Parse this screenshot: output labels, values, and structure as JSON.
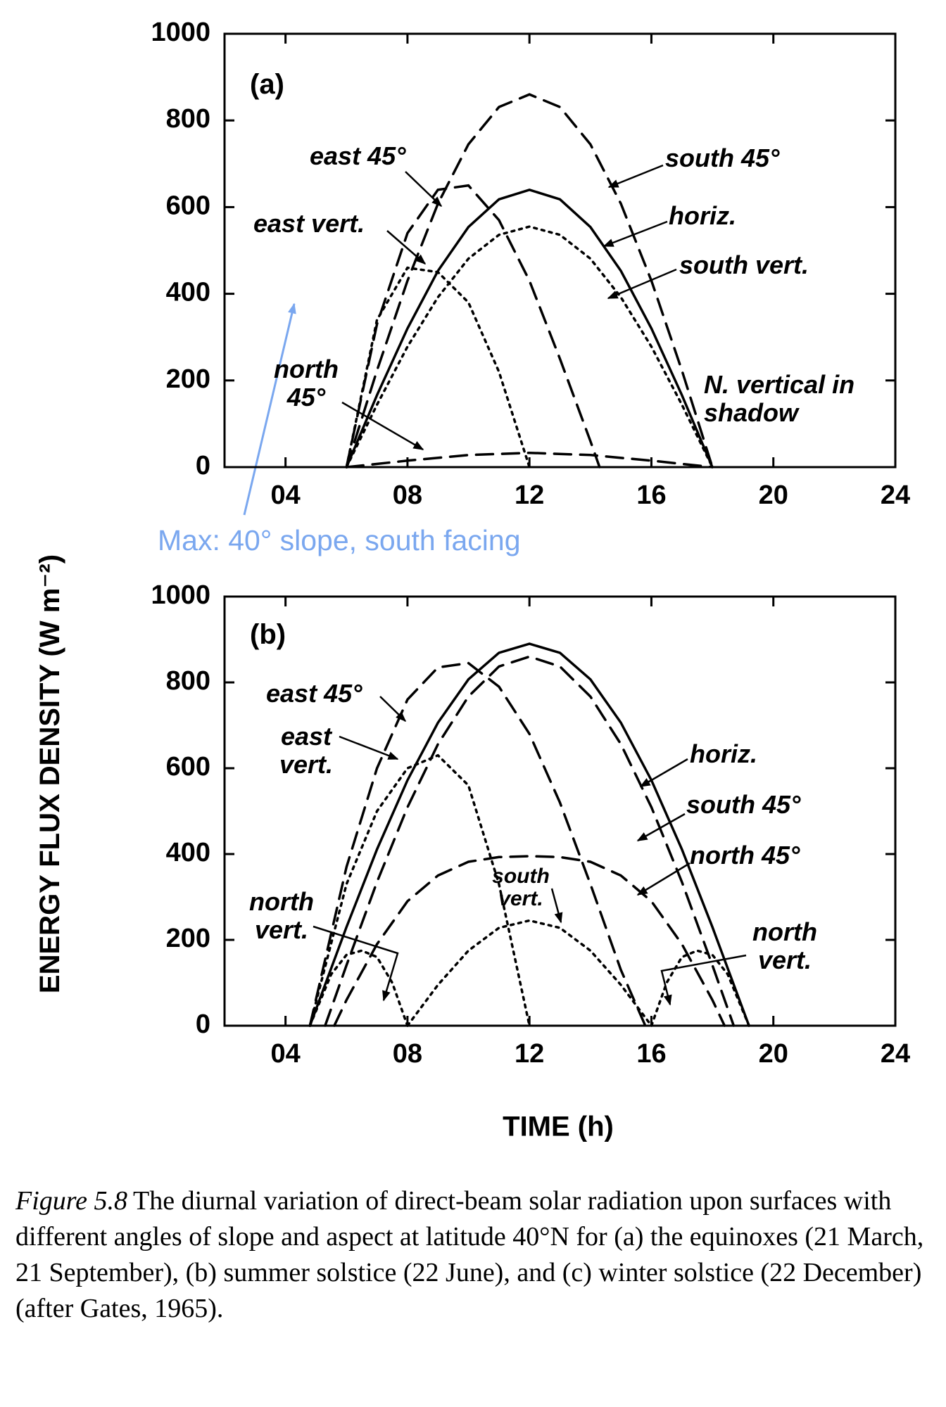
{
  "figure": {
    "y_axis_label": "ENERGY FLUX DENSITY (W m⁻²)",
    "x_axis_label": "TIME (h)",
    "annotation": "Max: 40° slope, south facing",
    "caption_label": "Figure 5.8",
    "caption": "The diurnal variation of direct-beam solar radiation upon surfaces with different angles of slope and aspect at latitude 40°N for (a) the equinoxes (21 March, 21 September), (b) summer solstice (22 June), and (c) winter solstice (22 December) (after Gates, 1965)."
  },
  "chart_data": [
    {
      "type": "line",
      "panel_label": "(a)",
      "note": "N. vertical in shadow",
      "xlim": [
        2,
        24
      ],
      "xticks": [
        {
          "value": 4,
          "label": "04"
        },
        {
          "value": 8,
          "label": "08"
        },
        12,
        16,
        20,
        24
      ],
      "ylim": [
        0,
        1000
      ],
      "yticks": [
        0,
        200,
        400,
        600,
        800,
        1000
      ],
      "series": [
        {
          "name": "south 45°",
          "color": "#000000",
          "dash": "long",
          "x": [
            6,
            7,
            8,
            9,
            10,
            11,
            12,
            13,
            14,
            15,
            16,
            17,
            18
          ],
          "values": [
            0,
            223,
            430,
            608,
            745,
            831,
            860,
            831,
            745,
            608,
            430,
            223,
            0
          ]
        },
        {
          "name": "horiz.",
          "color": "#000000",
          "dash": "solid",
          "x": [
            6,
            7,
            8,
            9,
            10,
            11,
            12,
            13,
            14,
            15,
            16,
            17,
            18
          ],
          "values": [
            0,
            166,
            320,
            453,
            554,
            618,
            640,
            618,
            554,
            453,
            320,
            166,
            0
          ]
        },
        {
          "name": "south vert.",
          "color": "#000000",
          "dash": "dot",
          "x": [
            6,
            7,
            8,
            9,
            10,
            11,
            12,
            13,
            14,
            15,
            16,
            17,
            18
          ],
          "values": [
            0,
            144,
            278,
            392,
            481,
            536,
            555,
            536,
            481,
            392,
            278,
            144,
            0
          ]
        },
        {
          "name": "east 45°",
          "color": "#000000",
          "dash": "long",
          "x": [
            6,
            7,
            8,
            9,
            10,
            11,
            12,
            13,
            14,
            14.3
          ],
          "values": [
            0,
            330,
            540,
            640,
            650,
            570,
            430,
            250,
            60,
            0
          ]
        },
        {
          "name": "east vert.",
          "color": "#000000",
          "dash": "dot",
          "x": [
            6,
            7,
            8,
            9,
            10,
            11,
            12
          ],
          "values": [
            0,
            340,
            460,
            450,
            380,
            220,
            0
          ]
        },
        {
          "name": "north 45°",
          "color": "#000000",
          "dash": "long",
          "x": [
            6,
            8,
            10,
            12,
            14,
            16,
            18
          ],
          "values": [
            0,
            15,
            28,
            33,
            28,
            15,
            0
          ]
        }
      ]
    },
    {
      "type": "line",
      "panel_label": "(b)",
      "xlim": [
        2,
        24
      ],
      "xticks": [
        {
          "value": 4,
          "label": "04"
        },
        {
          "value": 8,
          "label": "08"
        },
        12,
        16,
        20,
        24
      ],
      "ylim": [
        0,
        1000
      ],
      "yticks": [
        0,
        200,
        400,
        600,
        800,
        1000
      ],
      "series": [
        {
          "name": "horiz.",
          "color": "#000000",
          "dash": "solid",
          "x": [
            4.8,
            6,
            7,
            8,
            9,
            10,
            11,
            12,
            13,
            14,
            15,
            16,
            17,
            18,
            19.2
          ],
          "values": [
            0,
            230,
            411,
            572,
            706,
            807,
            869,
            890,
            869,
            807,
            706,
            572,
            411,
            230,
            0
          ]
        },
        {
          "name": "south 45°",
          "color": "#000000",
          "dash": "long",
          "x": [
            5.3,
            6,
            7,
            8,
            9,
            10,
            11,
            12,
            13,
            14,
            15,
            16,
            17,
            18,
            18.7
          ],
          "values": [
            0,
            141,
            335,
            509,
            656,
            767,
            837,
            860,
            837,
            767,
            656,
            509,
            335,
            141,
            0
          ]
        },
        {
          "name": "north 45°",
          "color": "#000000",
          "dash": "long",
          "x": [
            5.6,
            6,
            7,
            8,
            9,
            10,
            11,
            12,
            13,
            14,
            15,
            16,
            17,
            18,
            18.4
          ],
          "values": [
            0,
            60,
            190,
            290,
            350,
            382,
            393,
            395,
            393,
            382,
            350,
            290,
            190,
            60,
            0
          ]
        },
        {
          "name": "east 45°",
          "color": "#000000",
          "dash": "long",
          "x": [
            4.8,
            6,
            7,
            8,
            9,
            10,
            11,
            12,
            13,
            14,
            15,
            15.8
          ],
          "values": [
            0,
            370,
            600,
            760,
            835,
            845,
            790,
            680,
            520,
            330,
            130,
            0
          ]
        },
        {
          "name": "east vert.",
          "color": "#000000",
          "dash": "dot",
          "x": [
            4.8,
            6,
            7,
            8,
            9,
            10,
            11,
            12
          ],
          "values": [
            0,
            330,
            500,
            600,
            630,
            560,
            330,
            0
          ]
        },
        {
          "name": "south vert.",
          "color": "#000000",
          "dash": "dot",
          "x": [
            8,
            9,
            10,
            11,
            12,
            13,
            14,
            15,
            16
          ],
          "values": [
            0,
            95,
            175,
            228,
            245,
            228,
            175,
            95,
            0
          ]
        },
        {
          "name": "north vert.",
          "color": "#000000",
          "dash": "dot",
          "x": [
            4.8,
            5.5,
            6,
            6.5,
            7,
            7.5,
            8,
            null,
            16,
            16.5,
            17,
            17.5,
            18,
            18.5,
            19.2
          ],
          "values": [
            0,
            120,
            165,
            175,
            160,
            100,
            0,
            null,
            0,
            100,
            160,
            175,
            165,
            120,
            0
          ]
        }
      ]
    }
  ]
}
